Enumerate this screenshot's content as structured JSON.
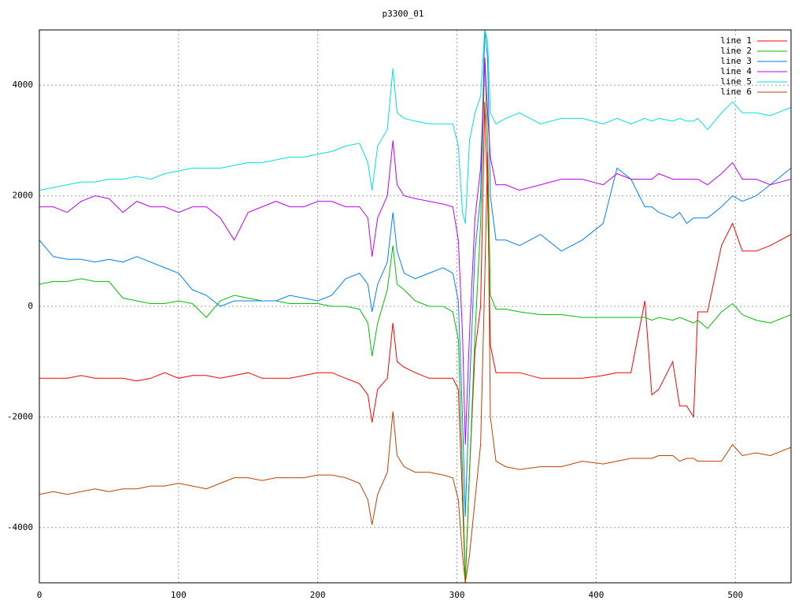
{
  "chart_data": {
    "type": "line",
    "title": "p3300_01",
    "x": [
      0,
      10,
      20,
      30,
      40,
      50,
      60,
      70,
      80,
      90,
      100,
      110,
      120,
      130,
      140,
      150,
      160,
      170,
      180,
      190,
      200,
      210,
      220,
      230,
      236,
      239,
      243,
      250,
      254,
      257,
      262,
      270,
      280,
      290,
      297,
      301,
      304,
      306,
      309,
      313,
      317,
      320,
      322,
      324,
      328,
      335,
      345,
      360,
      375,
      390,
      405,
      415,
      425,
      435,
      440,
      445,
      455,
      460,
      465,
      470,
      473,
      480,
      490,
      498,
      505,
      515,
      525,
      540
    ],
    "series": [
      {
        "name": "line 1",
        "color": "#ff0000",
        "values": [
          -1300,
          -1300,
          -1300,
          -1250,
          -1300,
          -1300,
          -1300,
          -1350,
          -1300,
          -1200,
          -1300,
          -1250,
          -1250,
          -1300,
          -1250,
          -1200,
          -1300,
          -1300,
          -1300,
          -1250,
          -1200,
          -1200,
          -1300,
          -1400,
          -1600,
          -2100,
          -1500,
          -1300,
          -300,
          -1000,
          -1100,
          -1200,
          -1300,
          -1300,
          -1300,
          -1500,
          -3500,
          -5000,
          -3000,
          -800,
          0,
          3700,
          2000,
          -700,
          -1200,
          -1200,
          -1200,
          -1300,
          -1300,
          -1300,
          -1250,
          -1200,
          -1200,
          100,
          -1600,
          -1500,
          -1000,
          -1800,
          -1800,
          -2000,
          -100,
          -100,
          1100,
          1500,
          1000,
          1000,
          1100,
          1300
        ]
      },
      {
        "name": "line 2",
        "color": "#00c000",
        "values": [
          400,
          450,
          450,
          500,
          450,
          450,
          150,
          100,
          50,
          50,
          100,
          50,
          -200,
          100,
          200,
          150,
          100,
          100,
          50,
          50,
          50,
          0,
          0,
          -50,
          -300,
          -900,
          -300,
          300,
          1100,
          400,
          300,
          100,
          0,
          0,
          -100,
          -600,
          -3000,
          -5000,
          -3000,
          -500,
          1500,
          4500,
          3000,
          200,
          -50,
          -50,
          -100,
          -150,
          -150,
          -200,
          -200,
          -200,
          -200,
          -200,
          -250,
          -200,
          -250,
          -200,
          -250,
          -300,
          -250,
          -400,
          -100,
          50,
          -150,
          -250,
          -300,
          -150
        ]
      },
      {
        "name": "line 3",
        "color": "#0080ff",
        "values": [
          1200,
          900,
          850,
          850,
          800,
          850,
          800,
          900,
          800,
          700,
          600,
          300,
          200,
          0,
          100,
          100,
          100,
          100,
          200,
          150,
          100,
          200,
          500,
          600,
          400,
          -100,
          400,
          800,
          1700,
          1000,
          600,
          500,
          600,
          700,
          600,
          100,
          -2000,
          -3800,
          -1500,
          1000,
          2000,
          5000,
          4500,
          2000,
          1200,
          1200,
          1100,
          1300,
          1000,
          1200,
          1500,
          2500,
          2300,
          1800,
          1800,
          1700,
          1600,
          1700,
          1500,
          1600,
          1600,
          1600,
          1800,
          2000,
          1900,
          2000,
          2200,
          2500
        ]
      },
      {
        "name": "line 4",
        "color": "#c000ff",
        "values": [
          1800,
          1800,
          1700,
          1900,
          2000,
          1950,
          1700,
          1900,
          1800,
          1800,
          1700,
          1800,
          1800,
          1600,
          1200,
          1700,
          1800,
          1900,
          1800,
          1800,
          1900,
          1900,
          1800,
          1800,
          1600,
          900,
          1600,
          2000,
          3000,
          2200,
          2000,
          1950,
          1900,
          1850,
          1800,
          1200,
          -500,
          -2500,
          -500,
          1600,
          2500,
          4500,
          3500,
          2700,
          2200,
          2200,
          2100,
          2200,
          2300,
          2300,
          2200,
          2400,
          2300,
          2300,
          2300,
          2400,
          2300,
          2300,
          2300,
          2300,
          2300,
          2200,
          2400,
          2600,
          2300,
          2300,
          2200,
          2300
        ]
      },
      {
        "name": "line 5",
        "color": "#00e0e0",
        "values": [
          2100,
          2150,
          2200,
          2250,
          2250,
          2300,
          2300,
          2350,
          2300,
          2400,
          2450,
          2500,
          2500,
          2500,
          2550,
          2600,
          2600,
          2650,
          2700,
          2700,
          2750,
          2800,
          2900,
          2950,
          2600,
          2100,
          2900,
          3200,
          4300,
          3500,
          3400,
          3350,
          3300,
          3300,
          3300,
          2900,
          1700,
          1500,
          3000,
          3500,
          3800,
          5000,
          4800,
          3500,
          3300,
          3400,
          3500,
          3300,
          3400,
          3400,
          3300,
          3400,
          3300,
          3400,
          3350,
          3400,
          3350,
          3400,
          3350,
          3350,
          3400,
          3200,
          3500,
          3700,
          3500,
          3500,
          3450,
          3600
        ]
      },
      {
        "name": "line 6",
        "color": "#c04000",
        "values": [
          -3400,
          -3350,
          -3400,
          -3350,
          -3300,
          -3350,
          -3300,
          -3300,
          -3250,
          -3250,
          -3200,
          -3250,
          -3300,
          -3200,
          -3100,
          -3100,
          -3150,
          -3100,
          -3100,
          -3100,
          -3050,
          -3050,
          -3100,
          -3200,
          -3500,
          -3950,
          -3400,
          -3000,
          -1900,
          -2700,
          -2900,
          -3000,
          -3000,
          -3050,
          -3100,
          -3500,
          -4500,
          -5000,
          -4500,
          -3500,
          -2500,
          500,
          2800,
          -2000,
          -2800,
          -2900,
          -2950,
          -2900,
          -2900,
          -2800,
          -2850,
          -2800,
          -2750,
          -2750,
          -2750,
          -2700,
          -2700,
          -2800,
          -2750,
          -2750,
          -2800,
          -2800,
          -2800,
          -2500,
          -2700,
          -2650,
          -2700,
          -2550
        ]
      }
    ],
    "xlim": [
      0,
      540
    ],
    "ylim": [
      -5000,
      5000
    ],
    "xticks": [
      0,
      100,
      200,
      300,
      400,
      500
    ],
    "yticks": [
      -4000,
      -2000,
      0,
      2000,
      4000
    ],
    "grid": true,
    "legend": "top-right"
  }
}
